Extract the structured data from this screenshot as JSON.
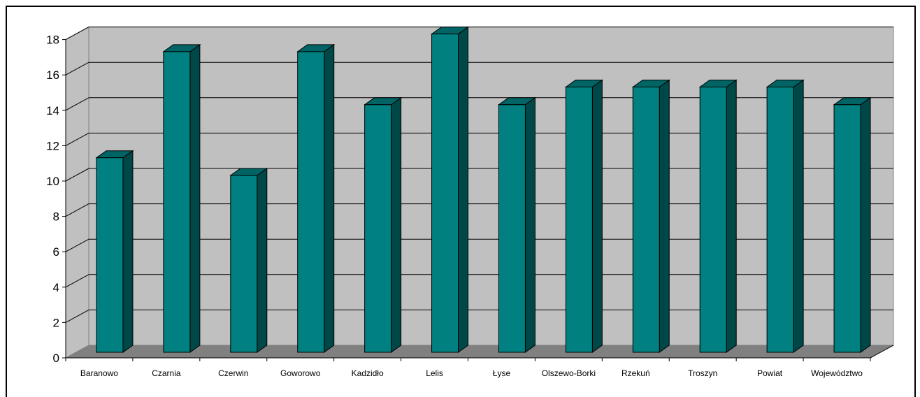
{
  "chart_data": {
    "type": "bar",
    "title": "",
    "xlabel": "",
    "ylabel": "",
    "categories": [
      "Baranowo",
      "Czarnia",
      "Czerwin",
      "Goworowo",
      "Kadzidło",
      "Lelis",
      "Łyse",
      "Olszewo-Borki",
      "Rzekuń",
      "Troszyn",
      "Powiat",
      "Województwo"
    ],
    "values": [
      11,
      17,
      10,
      17,
      14,
      18,
      14,
      15,
      15,
      15,
      15,
      14
    ],
    "ylim": [
      0,
      18
    ],
    "yticks": [
      "0",
      "2",
      "4",
      "6",
      "8",
      "10",
      "12",
      "14",
      "16",
      "18"
    ],
    "grid": true,
    "legend": "none",
    "style": "3d-columns"
  },
  "colors": {
    "bar_front": "#008080",
    "bar_side": "#004848",
    "bar_top": "#006464",
    "wall": "#c0c0c0",
    "floor": "#808080",
    "gridline": "#000000"
  }
}
